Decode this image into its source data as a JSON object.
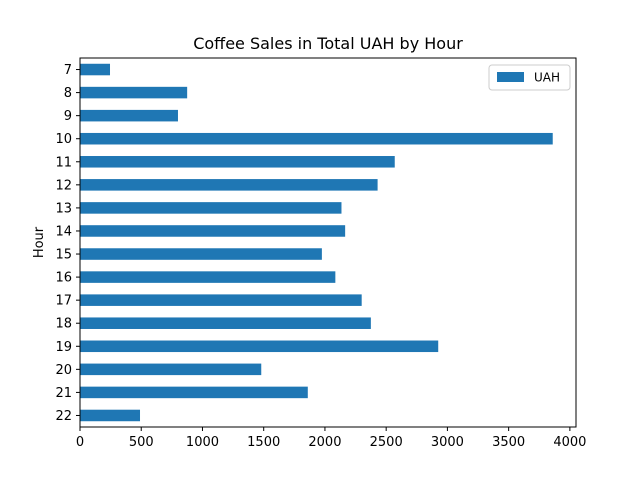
{
  "chart_data": {
    "type": "bar",
    "orientation": "horizontal",
    "title": "Coffee Sales in Total UAH by Hour",
    "xlabel": "",
    "ylabel": "Hour",
    "categories": [
      "7",
      "8",
      "9",
      "10",
      "11",
      "12",
      "13",
      "14",
      "15",
      "16",
      "17",
      "18",
      "19",
      "20",
      "21",
      "22"
    ],
    "series": [
      {
        "name": "UAH",
        "color": "#1f77b4",
        "values": [
          245,
          875,
          800,
          3860,
          2570,
          2430,
          2135,
          2165,
          1975,
          2085,
          2300,
          2375,
          2925,
          1480,
          1860,
          490
        ]
      }
    ],
    "xlim": [
      0,
      4050
    ],
    "xticks": [
      0,
      500,
      1000,
      1500,
      2000,
      2500,
      3000,
      3500,
      4000
    ],
    "grid": false,
    "legend_position": "top-right"
  }
}
